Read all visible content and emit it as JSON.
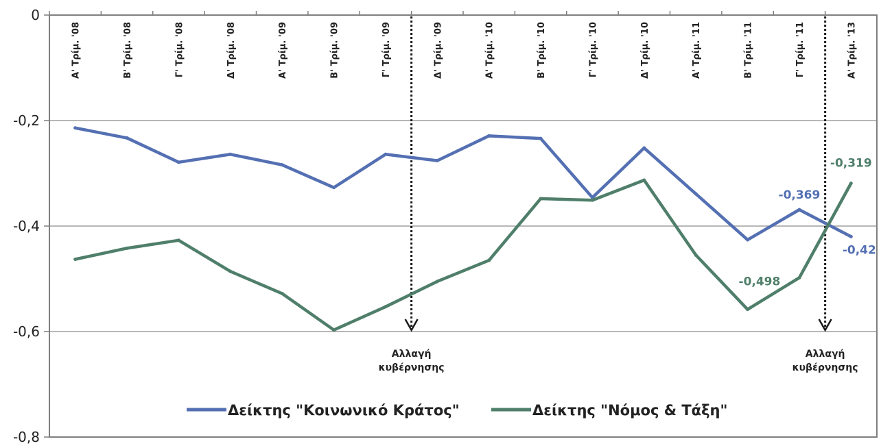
{
  "chart_data": {
    "type": "line",
    "title": "",
    "xlabel": "",
    "ylabel": "",
    "ylim": [
      -0.8,
      0
    ],
    "yticks": [
      0,
      -0.2,
      -0.4,
      -0.6,
      -0.8
    ],
    "ytick_labels": [
      "0",
      "-0,2",
      "-0,4",
      "-0,6",
      "-0,8"
    ],
    "grid": true,
    "legend_position": "bottom",
    "categories": [
      "Α' Τρίμ. '08",
      "Β' Τρίμ. '08",
      "Γ' Τρίμ. '08",
      "Δ' Τρίμ. '08",
      "Α' Τρίμ. '09",
      "Β' Τρίμ. '09",
      "Γ' Τρίμ. '09",
      "Δ' Τρίμ. '09",
      "Α' Τρίμ. '10",
      "Β' Τρίμ. '10",
      "Γ' Τρίμ. '10",
      "Δ' Τρίμ. '10",
      "Α' Τρίμ. '11",
      "Β' Τρίμ. '11",
      "Γ' Τρίμ. '11",
      "Α' Τρίμ. '13"
    ],
    "series": [
      {
        "name": "Δείκτης \"Κοινωνικό Κράτος\"",
        "color": "#5470b3",
        "values": [
          -0.214,
          -0.233,
          -0.279,
          -0.264,
          -0.284,
          -0.327,
          -0.264,
          -0.276,
          -0.229,
          -0.234,
          -0.346,
          -0.252,
          -0.339,
          -0.426,
          -0.369,
          -0.42
        ],
        "data_labels": [
          {
            "index": 14,
            "text": "-0,369"
          },
          {
            "index": 15,
            "text": "-0,42"
          }
        ]
      },
      {
        "name": "Δείκτης \"Νόμος & Τάξη\"",
        "color": "#4f7f6b",
        "values": [
          -0.463,
          -0.442,
          -0.427,
          -0.486,
          -0.528,
          -0.597,
          -0.553,
          -0.505,
          -0.465,
          -0.348,
          -0.351,
          -0.313,
          -0.455,
          -0.558,
          -0.498,
          -0.319
        ],
        "data_labels": [
          {
            "index": 14,
            "text": "-0,498"
          },
          {
            "index": 15,
            "text": "-0,319"
          }
        ]
      }
    ],
    "annotations": [
      {
        "after_index": 6,
        "line1": "Αλλαγή",
        "line2": "κυβέρνησης"
      },
      {
        "after_index": 14,
        "line1": "Αλλαγή",
        "line2": "κυβέρνησης"
      }
    ]
  }
}
